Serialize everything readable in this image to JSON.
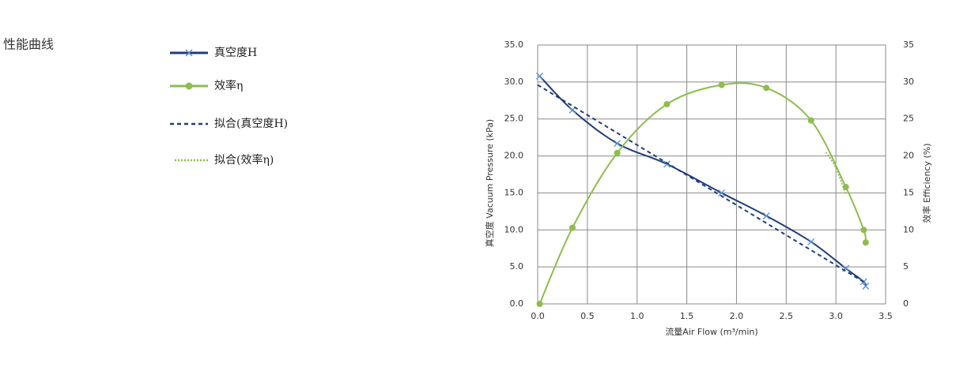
{
  "heading": "性能曲线",
  "chart_data": {
    "type": "line",
    "xlabel": "流量Air Flow (m³/min)",
    "ylabel": "真空度 Vacuum Pressure (kPa)",
    "y2label": "效率 Efficiency (%)",
    "xlim": [
      0,
      3.5
    ],
    "xticks": [
      {
        "value": 0,
        "label": "0.0"
      },
      0.5,
      {
        "value": 1,
        "label": "1.0"
      },
      1.5,
      {
        "value": 2,
        "label": "2.0"
      },
      2.5,
      {
        "value": 3,
        "label": "3.0"
      },
      3.5
    ],
    "ylim": [
      0,
      35
    ],
    "yticks": [
      {
        "value": 0,
        "label": "0.0"
      },
      {
        "value": 5,
        "label": "5.0"
      },
      {
        "value": 10,
        "label": "10.0"
      },
      {
        "value": 15,
        "label": "15.0"
      },
      {
        "value": 20,
        "label": "20.0"
      },
      {
        "value": 25,
        "label": "25.0"
      },
      {
        "value": 30,
        "label": "30.0"
      },
      {
        "value": 35,
        "label": "35.0"
      }
    ],
    "y2lim": [
      0,
      35
    ],
    "y2ticks": [
      0,
      5,
      10,
      15,
      20,
      25,
      30,
      35
    ],
    "grid": true,
    "series": [
      {
        "name": "真空度H",
        "color": "#1f3d7a",
        "marker": "x",
        "marker_color": "#5b8fd0",
        "dash": "none",
        "axis": "y",
        "x": [
          0.02,
          0.35,
          0.8,
          1.3,
          1.85,
          2.3,
          2.75,
          3.1,
          3.28,
          3.3
        ],
        "values": [
          30.8,
          26.2,
          21.7,
          18.9,
          15.0,
          11.9,
          8.4,
          4.8,
          3.0,
          2.4
        ]
      },
      {
        "name": "效率η",
        "color": "#8cbd4e",
        "marker": "circle",
        "marker_color": "#8cbd4e",
        "dash": "none",
        "axis": "y2",
        "x": [
          0.02,
          0.35,
          0.8,
          1.3,
          1.85,
          2.3,
          2.75,
          3.1,
          3.28,
          3.3
        ],
        "values": [
          0,
          10.3,
          20.4,
          27.0,
          29.6,
          29.2,
          24.8,
          15.8,
          10.0,
          8.3
        ]
      },
      {
        "name": "拟合(真空度H)",
        "color": "#1f3d7a",
        "marker": "none",
        "dash": "5,4",
        "axis": "y",
        "x": [
          0,
          3.3
        ],
        "values": [
          29.6,
          2.8
        ]
      },
      {
        "name": "拟合(效率η)",
        "color": "#8cbd4e",
        "marker": "none",
        "dash": "2,2",
        "axis": "y2",
        "x": [
          2.9,
          3.0,
          3.1
        ],
        "values": [
          20.5,
          18.4,
          14.8
        ]
      }
    ]
  }
}
